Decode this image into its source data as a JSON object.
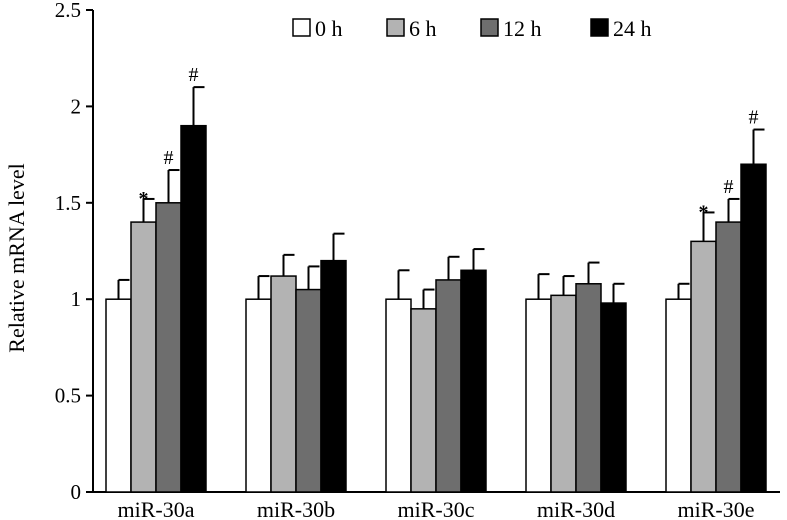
{
  "chart_data": {
    "type": "bar",
    "title": "",
    "xlabel": "",
    "ylabel": "Relative mRNA level",
    "ylim": [
      0,
      2.5
    ],
    "yticks": [
      "0",
      "0.5",
      "1",
      "1.5",
      "2",
      "2.5"
    ],
    "ytick_values": [
      0,
      0.5,
      1,
      1.5,
      2,
      2.5
    ],
    "categories": [
      "miR-30a",
      "miR-30b",
      "miR-30c",
      "miR-30d",
      "miR-30e"
    ],
    "legend_position": "top-right",
    "series": [
      {
        "name": "0 h",
        "color": "#ffffff",
        "values": [
          1.0,
          1.0,
          1.0,
          1.0,
          1.0
        ],
        "errors": [
          0.1,
          0.12,
          0.15,
          0.13,
          0.08
        ],
        "annotations": [
          "",
          "",
          "",
          "",
          ""
        ]
      },
      {
        "name": "6 h",
        "color": "#b3b3b3",
        "values": [
          1.4,
          1.12,
          0.95,
          1.02,
          1.3
        ],
        "errors": [
          0.12,
          0.11,
          0.1,
          0.1,
          0.15
        ],
        "annotations": [
          "*",
          "",
          "",
          "",
          "*"
        ]
      },
      {
        "name": "12 h",
        "color": "#6e6e6e",
        "values": [
          1.5,
          1.05,
          1.1,
          1.08,
          1.4
        ],
        "errors": [
          0.17,
          0.12,
          0.12,
          0.11,
          0.12
        ],
        "annotations": [
          "#",
          "",
          "",
          "",
          "#"
        ]
      },
      {
        "name": "24 h",
        "color": "#000000",
        "values": [
          1.9,
          1.2,
          1.15,
          0.98,
          1.7
        ],
        "errors": [
          0.2,
          0.14,
          0.11,
          0.1,
          0.18
        ],
        "annotations": [
          "#",
          "",
          "",
          "",
          "#"
        ]
      }
    ]
  }
}
